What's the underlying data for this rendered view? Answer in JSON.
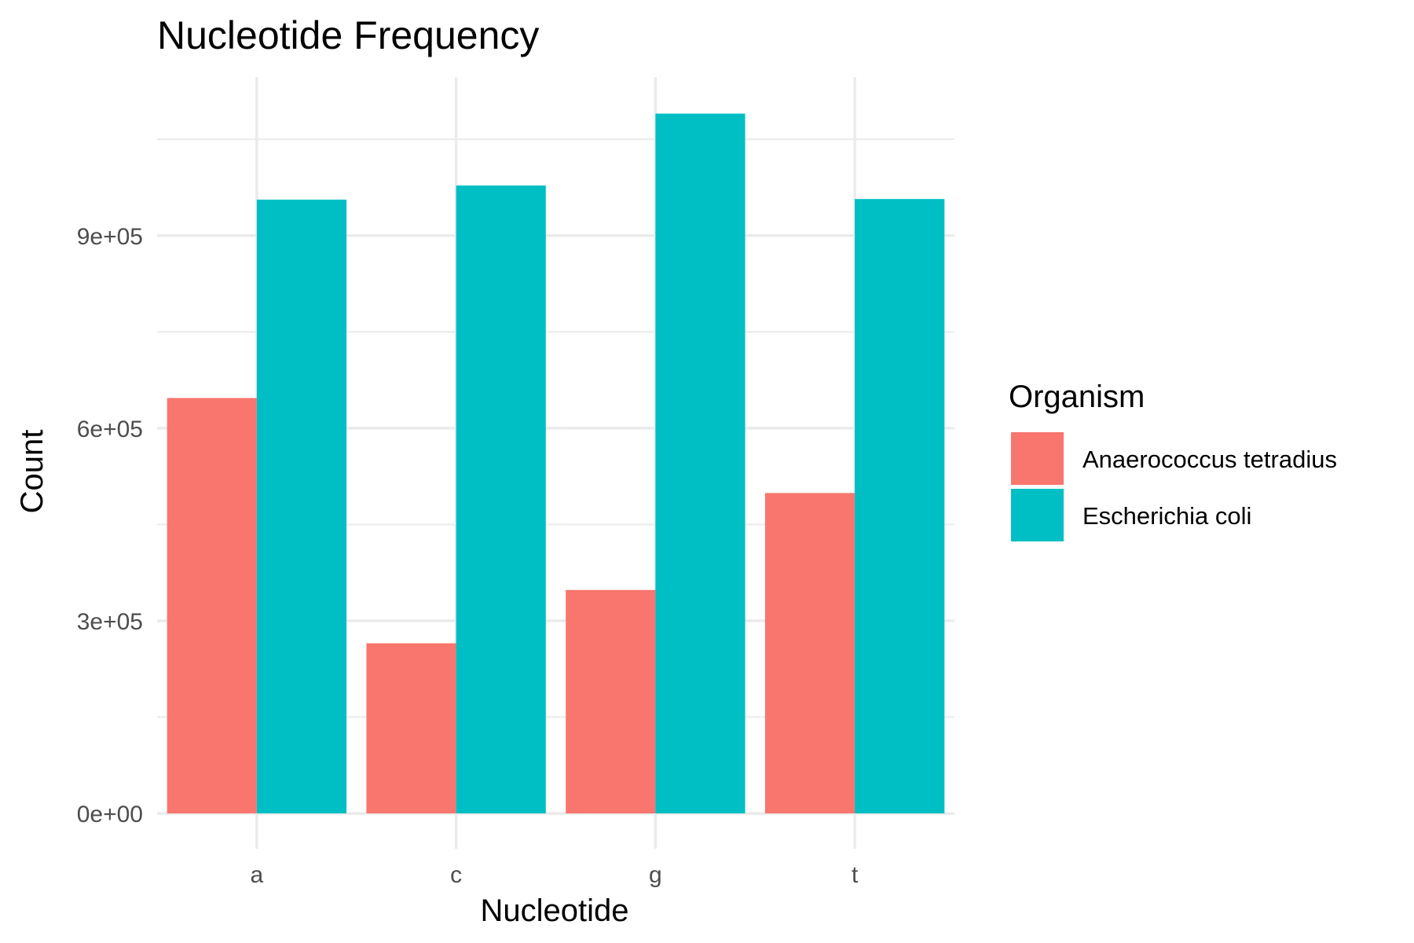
{
  "chart_data": {
    "type": "bar",
    "title": "Nucleotide Frequency",
    "xlabel": "Nucleotide",
    "ylabel": "Count",
    "categories": [
      "a",
      "c",
      "g",
      "t"
    ],
    "series": [
      {
        "name": "Anaerococcus tetradius",
        "color": "#F8766D",
        "values": [
          647000,
          265000,
          348000,
          499000
        ]
      },
      {
        "name": "Escherichia coli",
        "color": "#00BFC4",
        "values": [
          956000,
          978000,
          1090000,
          957000
        ]
      }
    ],
    "y_ticks": [
      0,
      300000,
      600000,
      900000
    ],
    "y_tick_labels": [
      "0e+00",
      "3e+05",
      "6e+05",
      "9e+05"
    ],
    "y_minor_ticks": [
      150000,
      450000,
      750000,
      1050000
    ],
    "ylim": [
      -55000,
      1147000
    ],
    "grid": true,
    "legend": {
      "title": "Organism",
      "position": "right"
    }
  }
}
